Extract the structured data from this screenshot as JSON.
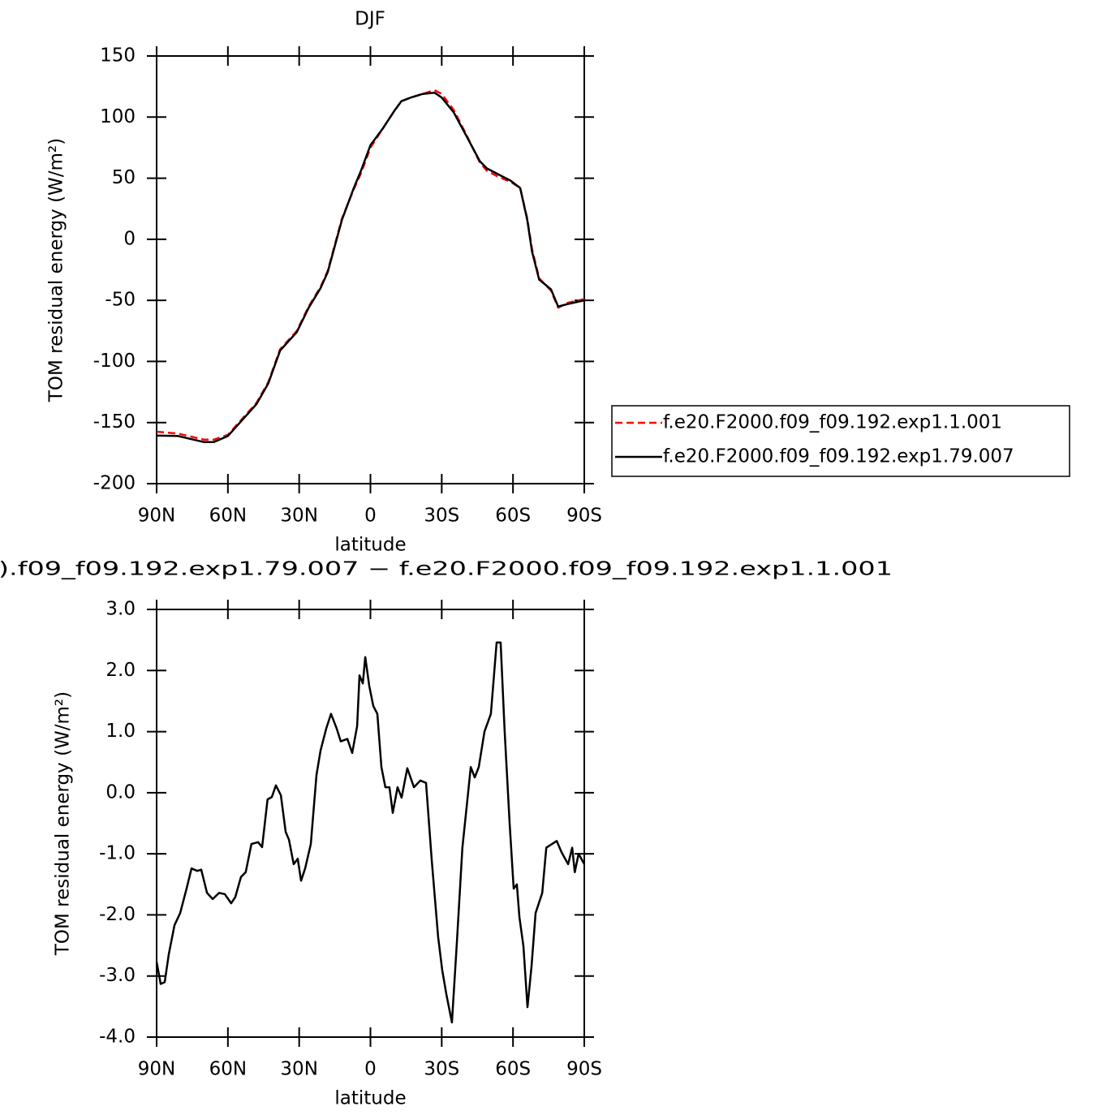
{
  "chart_data": [
    {
      "type": "line",
      "title": "DJF",
      "xlabel": "latitude",
      "ylabel": "TOM residual energy (W/m²)",
      "x": [
        90,
        81,
        70,
        66,
        60,
        54,
        48,
        43,
        38,
        31,
        26,
        21,
        18,
        12,
        7,
        4,
        0,
        -5,
        -10,
        -13,
        -17,
        -22,
        -27,
        -30,
        -35,
        -40,
        -46,
        -49,
        -54,
        -59,
        -63,
        -66,
        -68,
        -71,
        -76,
        -79,
        -83,
        -90
      ],
      "series": [
        {
          "name": "f.e20.F2000.f09_f09.192.exp1.1.001",
          "color": "#ff0000",
          "style": "dashed",
          "values": [
            -157.5,
            -159,
            -164,
            -164,
            -160,
            -147,
            -134,
            -117,
            -90,
            -75,
            -55,
            -39,
            -26,
            17,
            41,
            54,
            75,
            90,
            105,
            113,
            116,
            119,
            122,
            119,
            106,
            87,
            63,
            56,
            51,
            47,
            42,
            17,
            -8,
            -32,
            -42,
            -56,
            -52,
            -49
          ]
        },
        {
          "name": "f.e20.F2000.f09_f09.192.exp1.79.007",
          "color": "#000000",
          "style": "solid",
          "values": [
            -160.7,
            -161,
            -166,
            -166,
            -161,
            -148,
            -135,
            -118,
            -91,
            -76,
            -56,
            -40,
            -27,
            16,
            42,
            56,
            77,
            90,
            105,
            113,
            116,
            119,
            120,
            116,
            104,
            86,
            64,
            58,
            53,
            48,
            42,
            16,
            -10,
            -33,
            -41,
            -55,
            -53,
            -50
          ]
        }
      ],
      "xlim": [
        90,
        -90
      ],
      "xticks": [
        {
          "value": 90,
          "label": "90N"
        },
        {
          "value": 60,
          "label": "60N"
        },
        {
          "value": 30,
          "label": "30N"
        },
        0,
        {
          "value": -30,
          "label": "30S"
        },
        {
          "value": -60,
          "label": "60S"
        },
        {
          "value": -90,
          "label": "90S"
        }
      ],
      "ylim": [
        -200,
        150
      ],
      "yticks": [
        150,
        100,
        50,
        0,
        -50,
        -100,
        -150,
        -200
      ],
      "legend": "outside-right"
    },
    {
      "type": "line",
      "title": ").f09_f09.192.exp1.79.007 − f.e20.F2000.f09_f09.192.exp1.1.001",
      "xlabel": "latitude",
      "ylabel": "TOM residual energy (W/m²)",
      "x": [
        90,
        88.3,
        86.6,
        84.9,
        82.5,
        80.1,
        77.4,
        75.3,
        72.9,
        71.2,
        68.8,
        66.4,
        63.7,
        61.3,
        58.6,
        56.9,
        54.5,
        52.5,
        50.1,
        47.3,
        45.6,
        43.3,
        41.5,
        39.8,
        37.7,
        35.7,
        34.3,
        32.3,
        30.6,
        29.2,
        27.5,
        25.1,
        22.7,
        21.0,
        18.6,
        16.6,
        14.2,
        12.5,
        9.7,
        7.7,
        5.6,
        4.6,
        3.2,
        2.2,
        0.5,
        -1.2,
        -2.9,
        -4.6,
        -6.3,
        -8.0,
        -9.4,
        -11.4,
        -13.1,
        -15.5,
        -18.3,
        -21.0,
        -23.4,
        -25.8,
        -28.5,
        -30.2,
        -31.9,
        -34.3,
        -36.4,
        -38.7,
        -40.8,
        -42.2,
        -43.9,
        -45.6,
        -48.0,
        -50.7,
        -53.1,
        -54.8,
        -56.5,
        -58.6,
        -60.3,
        -61.6,
        -62.7,
        -64.4,
        -66.1,
        -67.8,
        -69.5,
        -72.3,
        -74.0,
        -76.4,
        -78.4,
        -80.5,
        -83.2,
        -84.9,
        -86.0,
        -87.6,
        -90
      ],
      "series": [
        {
          "color": "#000000",
          "style": "solid",
          "values": [
            -2.77,
            -3.13,
            -3.1,
            -2.65,
            -2.17,
            -1.97,
            -1.57,
            -1.24,
            -1.28,
            -1.26,
            -1.64,
            -1.74,
            -1.64,
            -1.66,
            -1.81,
            -1.71,
            -1.38,
            -1.3,
            -0.84,
            -0.81,
            -0.89,
            -0.11,
            -0.07,
            0.12,
            -0.04,
            -0.64,
            -0.77,
            -1.17,
            -1.08,
            -1.44,
            -1.24,
            -0.84,
            0.29,
            0.69,
            1.05,
            1.29,
            1.05,
            0.84,
            0.88,
            0.65,
            1.09,
            1.92,
            1.79,
            2.22,
            1.75,
            1.42,
            1.29,
            0.42,
            0.09,
            0.09,
            -0.33,
            0.09,
            -0.08,
            0.4,
            0.09,
            0.2,
            0.16,
            -1.1,
            -2.36,
            -2.9,
            -3.29,
            -3.76,
            -2.43,
            -0.9,
            -0.11,
            0.42,
            0.25,
            0.42,
            1.0,
            1.29,
            2.46,
            2.46,
            1.0,
            -0.52,
            -1.57,
            -1.5,
            -2.04,
            -2.51,
            -3.51,
            -2.84,
            -1.97,
            -1.64,
            -0.9,
            -0.84,
            -0.79,
            -0.98,
            -1.17,
            -0.9,
            -1.3,
            -1.0,
            -1.17
          ]
        }
      ],
      "xlim": [
        90,
        -90
      ],
      "xticks": [
        {
          "value": 90,
          "label": "90N"
        },
        {
          "value": 60,
          "label": "60N"
        },
        {
          "value": 30,
          "label": "30N"
        },
        0,
        {
          "value": -30,
          "label": "30S"
        },
        {
          "value": -60,
          "label": "60S"
        },
        {
          "value": -90,
          "label": "90S"
        }
      ],
      "ylim": [
        -4,
        3
      ],
      "yticks": [
        {
          "value": 3,
          "label": "3.0"
        },
        {
          "value": 2,
          "label": "2.0"
        },
        {
          "value": 1,
          "label": "1.0"
        },
        {
          "value": 0,
          "label": "0.0"
        },
        {
          "value": -1,
          "label": "-1.0"
        },
        {
          "value": -2,
          "label": "-2.0"
        },
        {
          "value": -3,
          "label": "-3.0"
        },
        {
          "value": -4,
          "label": "-4.0"
        }
      ]
    }
  ]
}
